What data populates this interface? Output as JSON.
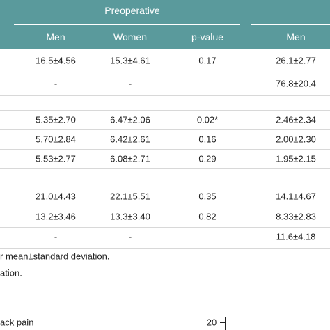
{
  "header": {
    "group": "Preoperative",
    "columns": [
      "Men",
      "Women",
      "p-value",
      "Men"
    ]
  },
  "table": {
    "rows": [
      [
        "16.5±4.56",
        "15.3±4.61",
        "0.17",
        "26.1±2.77"
      ],
      [
        "-",
        "-",
        null,
        "76.8±20.4"
      ],
      [
        "5.35±2.70",
        "6.47±2.06",
        "0.02*",
        "2.46±2.34"
      ],
      [
        "5.70±2.84",
        "6.42±2.61",
        "0.16",
        "2.00±2.30"
      ],
      [
        "5.53±2.77",
        "6.08±2.71",
        "0.29",
        "1.95±2.15"
      ],
      [
        "21.0±4.43",
        "22.1±5.51",
        "0.35",
        "14.1±4.67"
      ],
      [
        "13.2±3.46",
        "13.3±3.40",
        "0.82",
        "8.33±2.83"
      ],
      [
        "-",
        "-",
        null,
        "11.6±4.18"
      ]
    ]
  },
  "footnotes": [
    "r mean±standard deviation.",
    "ation."
  ],
  "figure": {
    "label": "ack pain",
    "tick": "20"
  }
}
